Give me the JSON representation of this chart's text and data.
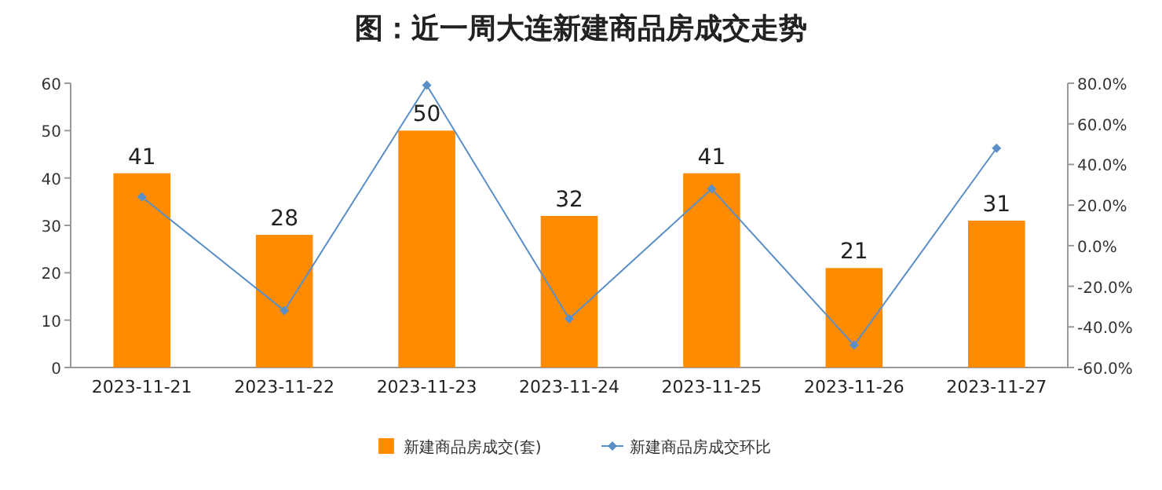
{
  "chart_data": {
    "type": "bar",
    "title": "图：近一周大连新建商品房成交走势",
    "categories": [
      "2023-11-21",
      "2023-11-22",
      "2023-11-23",
      "2023-11-24",
      "2023-11-25",
      "2023-11-26",
      "2023-11-27"
    ],
    "series": [
      {
        "name": "新建商品房成交(套)",
        "color": "#ff8c00",
        "values": [
          41,
          28,
          50,
          32,
          41,
          21,
          31
        ],
        "value_labels": [
          "41",
          "28",
          "50",
          "32",
          "41",
          "21",
          "31"
        ]
      },
      {
        "name": "新建商品房成交环比",
        "type": "line",
        "axis": "y2",
        "color": "#5b8fc7",
        "marker": "diamond",
        "line_style": "solid",
        "values": [
          24,
          -32,
          79,
          -36,
          28,
          -49,
          48
        ]
      }
    ],
    "ylim": [
      0,
      60
    ],
    "yticks": [
      0,
      10,
      20,
      30,
      40,
      50,
      60
    ],
    "y2lim": [
      -60,
      80
    ],
    "y2ticks": [
      {
        "value": -60,
        "label": "-60.0%"
      },
      {
        "value": -40,
        "label": "-40.0%"
      },
      {
        "value": -20,
        "label": "-20.0%"
      },
      {
        "value": 0,
        "label": "0.0%"
      },
      {
        "value": 20,
        "label": "20.0%"
      },
      {
        "value": 40,
        "label": "40.0%"
      },
      {
        "value": 60,
        "label": "60.0%"
      },
      {
        "value": 80,
        "label": "80.0%"
      }
    ],
    "grid": false,
    "legend": "bottom"
  }
}
